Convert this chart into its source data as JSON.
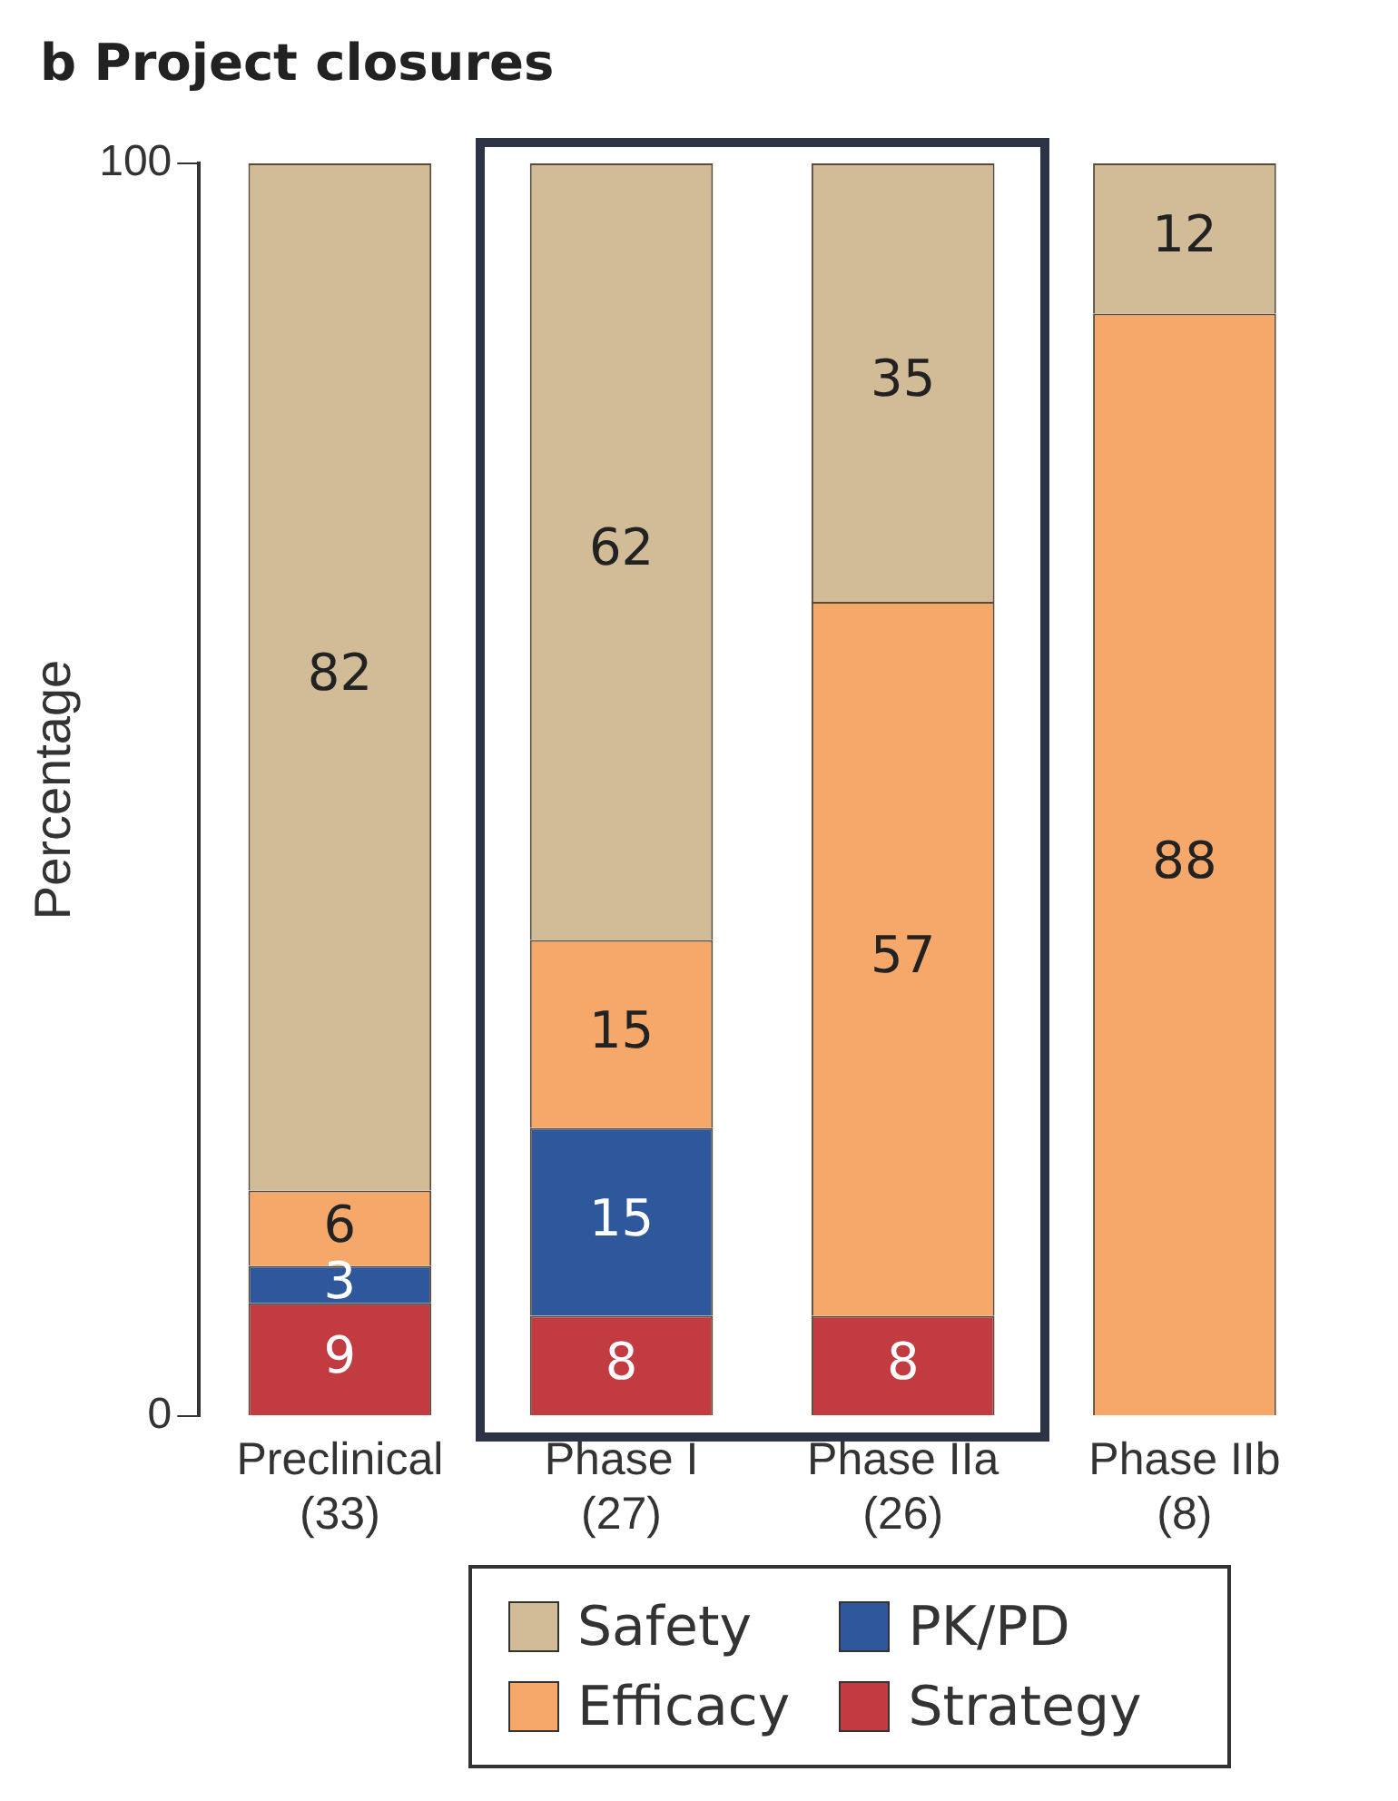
{
  "chart_data": {
    "type": "bar",
    "title": "b Project closures",
    "ylabel": "Percentage",
    "categories": [
      "Preclinical\n(33)",
      "Phase I\n(27)",
      "Phase IIa\n(26)",
      "Phase IIb\n(8)"
    ],
    "stacked": true,
    "series": [
      {
        "name": "Strategy",
        "color": "#c23b40",
        "values": [
          9,
          8,
          8,
          null
        ]
      },
      {
        "name": "PK/PD",
        "color": "#2e579c",
        "values": [
          3,
          15,
          null,
          null
        ]
      },
      {
        "name": "Efficacy",
        "color": "#f5a86a",
        "values": [
          6,
          15,
          57,
          88
        ]
      },
      {
        "name": "Safety",
        "color": "#d2bc98",
        "values": [
          82,
          62,
          35,
          12
        ]
      }
    ],
    "ylim": [
      0,
      100
    ],
    "yticks": [
      0,
      100
    ],
    "grid": false,
    "legend": "bottom",
    "data_labels": true
  }
}
